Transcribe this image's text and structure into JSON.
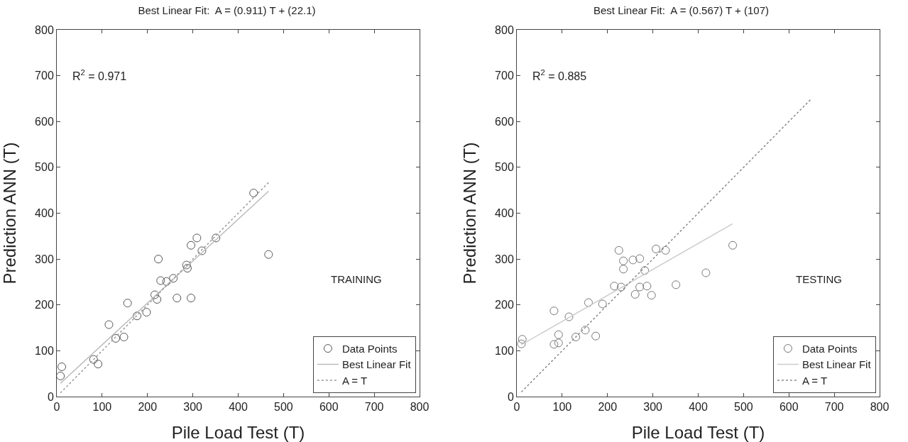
{
  "chart_data": [
    {
      "type": "scatter",
      "title": "Best Linear Fit:  A = (0.911) T + (22.1)",
      "xlabel": "Pile Load Test (T)",
      "ylabel": "Prediction ANN (T)",
      "annotations": [
        "R$^{2}$ = 0.971",
        "TRAINING"
      ],
      "xlim": [
        0,
        800
      ],
      "ylim": [
        0,
        800
      ],
      "xticks": [
        0,
        100,
        200,
        300,
        400,
        500,
        600,
        700,
        800
      ],
      "yticks": [
        0,
        100,
        200,
        300,
        400,
        500,
        600,
        700,
        800
      ],
      "grid": false,
      "legend": "bottom right",
      "series": [
        {
          "name": "Data Points",
          "marker": "circle",
          "color": "#555555",
          "x": [
            434,
            467,
            309,
            320,
            351,
            296,
            286,
            288,
            224,
            229,
            242,
            257,
            216,
            221,
            265,
            296,
            156,
            177,
            198,
            115,
            130,
            148,
            81,
            91,
            11,
            8
          ],
          "values": [
            444,
            310,
            346,
            318,
            346,
            330,
            287,
            280,
            300,
            253,
            251,
            258,
            222,
            212,
            215,
            215,
            204,
            176,
            184,
            157,
            127,
            130,
            81,
            71,
            65,
            45
          ]
        },
        {
          "name": "Best Linear Fit",
          "type": "line",
          "line_style": "solid",
          "color": "#bbbbbb",
          "x": [
            8,
            467
          ],
          "values": [
            29,
            448
          ]
        },
        {
          "name": "A = T",
          "type": "line",
          "line_style": "dotted",
          "color": "#999999",
          "x": [
            8,
            467
          ],
          "values": [
            8,
            467
          ]
        }
      ]
    },
    {
      "type": "scatter",
      "title": "Best Linear Fit:  A = (0.567) T + (107)",
      "xlabel": "Pile Load Test (T)",
      "ylabel": "Prediction ANN (T)",
      "annotations": [
        "R$^{2}$ = 0.885",
        "TESTING"
      ],
      "xlim": [
        0,
        800
      ],
      "ylim": [
        0,
        800
      ],
      "xticks": [
        0,
        100,
        200,
        300,
        400,
        500,
        600,
        700,
        800
      ],
      "yticks": [
        0,
        100,
        200,
        300,
        400,
        500,
        600,
        700,
        800
      ],
      "grid": false,
      "legend": "bottom right",
      "series": [
        {
          "name": "Data Points",
          "marker": "circle",
          "color": "#777777",
          "x": [
            225,
            235,
            256,
            271,
            235,
            282,
            307,
            328,
            215,
            230,
            271,
            287,
            261,
            297,
            351,
            158,
            189,
            82,
            115,
            151,
            130,
            174,
            92,
            82,
            92,
            12,
            10,
            417,
            476
          ],
          "values": [
            319,
            296,
            298,
            301,
            278,
            275,
            322,
            319,
            241,
            239,
            239,
            241,
            223,
            221,
            244,
            205,
            202,
            187,
            174,
            145,
            130,
            132,
            135,
            114,
            117,
            125,
            115,
            270,
            330
          ]
        },
        {
          "name": "Best Linear Fit",
          "type": "line",
          "line_style": "solid",
          "color": "#cccccc",
          "x": [
            10,
            476
          ],
          "values": [
            113,
            377
          ]
        },
        {
          "name": "A = T",
          "type": "line",
          "line_style": "dotted",
          "color": "#888888",
          "x": [
            10,
            650
          ],
          "values": [
            10,
            650
          ]
        }
      ]
    }
  ]
}
